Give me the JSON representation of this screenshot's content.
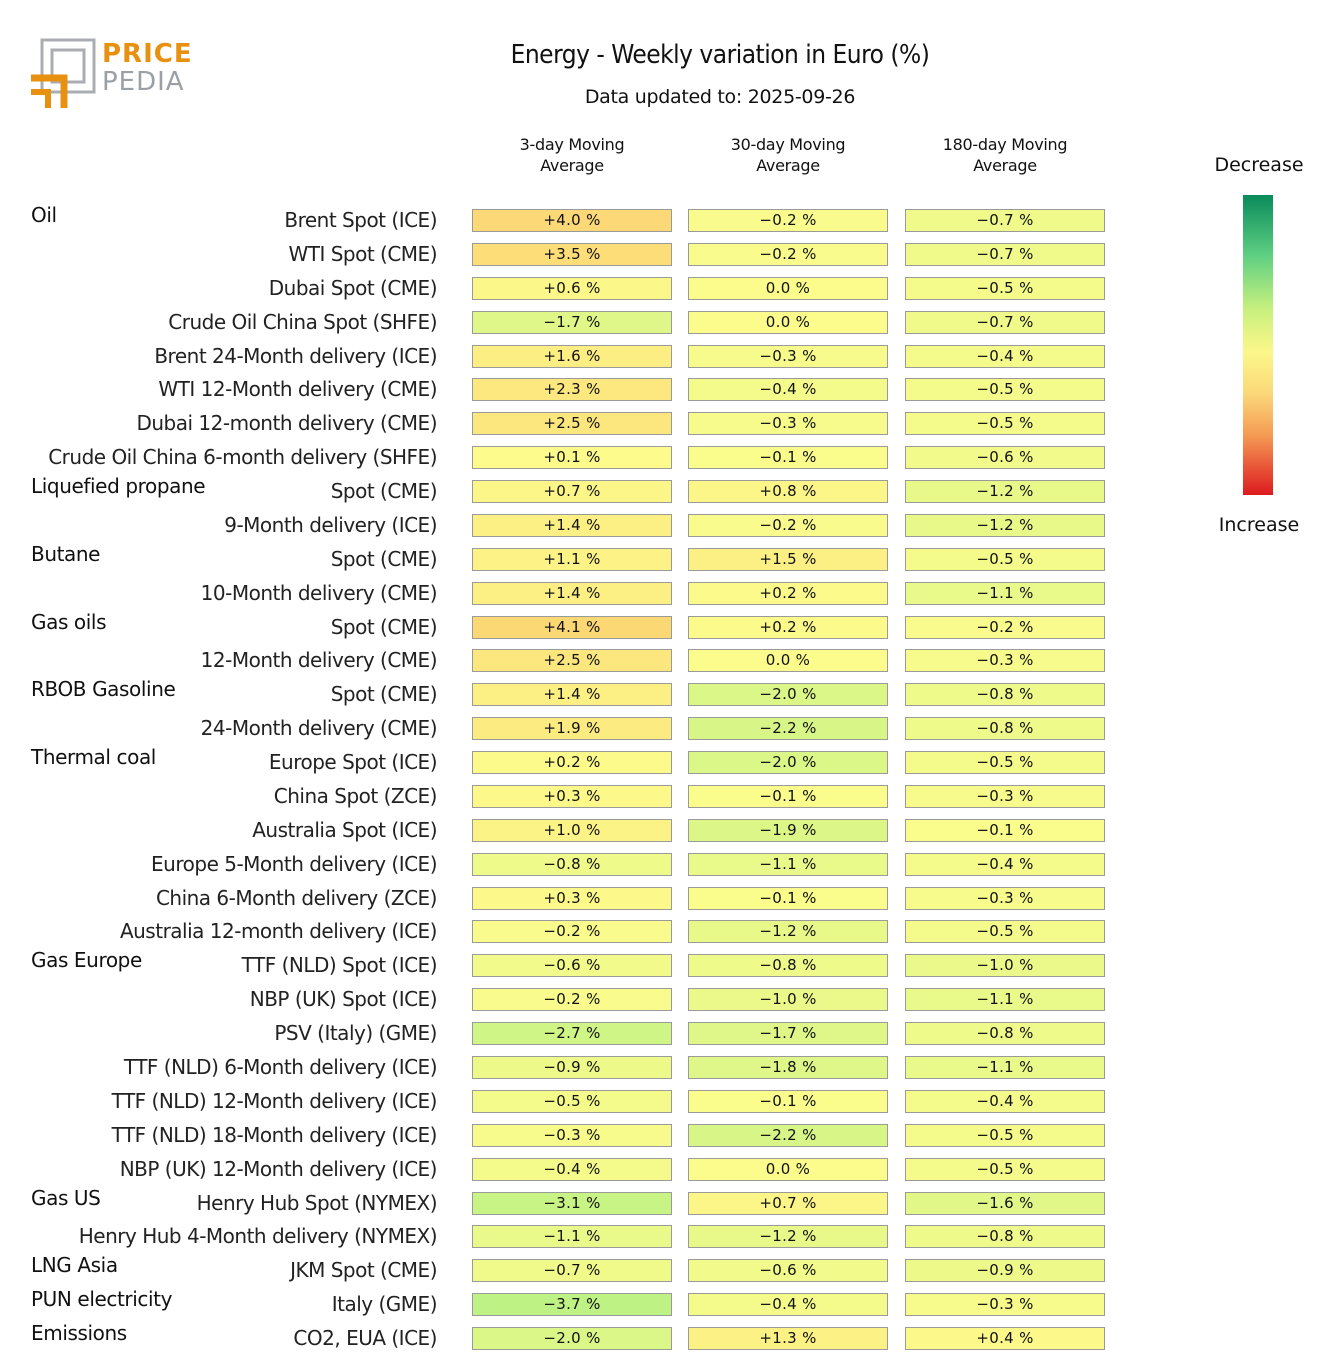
{
  "logo": {
    "word1": "PRICE",
    "word2": "PEDIA"
  },
  "title": "Energy - Weekly variation in Euro (%)",
  "subtitle": "Data updated to: 2025-09-26",
  "legend": {
    "top": "Decrease",
    "bottom": "Increase"
  },
  "chart_data": {
    "type": "heatmap",
    "title": "Energy - Weekly variation in Euro (%)",
    "columns": [
      "3-day Moving Average",
      "30-day Moving Average",
      "180-day Moving Average"
    ],
    "column_labels": [
      [
        "3-day Moving",
        "Average"
      ],
      [
        "30-day Moving",
        "Average"
      ],
      [
        "180-day Moving",
        "Average"
      ]
    ],
    "unit": "%",
    "rows": [
      {
        "group": "Oil",
        "label": "Brent Spot (ICE)",
        "values": [
          4.0,
          -0.2,
          -0.7
        ]
      },
      {
        "group": "",
        "label": "WTI Spot (CME)",
        "values": [
          3.5,
          -0.2,
          -0.7
        ]
      },
      {
        "group": "",
        "label": "Dubai Spot (CME)",
        "values": [
          0.6,
          0.0,
          -0.5
        ]
      },
      {
        "group": "",
        "label": "Crude Oil China Spot (SHFE)",
        "values": [
          -1.7,
          0.0,
          -0.7
        ]
      },
      {
        "group": "",
        "label": "Brent 24-Month delivery (ICE)",
        "values": [
          1.6,
          -0.3,
          -0.4
        ]
      },
      {
        "group": "",
        "label": "WTI 12-Month delivery (CME)",
        "values": [
          2.3,
          -0.4,
          -0.5
        ]
      },
      {
        "group": "",
        "label": "Dubai 12-month delivery (CME)",
        "values": [
          2.5,
          -0.3,
          -0.5
        ]
      },
      {
        "group": "",
        "label": "Crude Oil China 6-month delivery (SHFE)",
        "values": [
          0.1,
          -0.1,
          -0.6
        ]
      },
      {
        "group": "Liquefied propane",
        "label": "Spot (CME)",
        "values": [
          0.7,
          0.8,
          -1.2
        ]
      },
      {
        "group": "",
        "label": "9-Month delivery (ICE)",
        "values": [
          1.4,
          -0.2,
          -1.2
        ]
      },
      {
        "group": "Butane",
        "label": "Spot (CME)",
        "values": [
          1.1,
          1.5,
          -0.5
        ]
      },
      {
        "group": "",
        "label": "10-Month delivery (CME)",
        "values": [
          1.4,
          0.2,
          -1.1
        ]
      },
      {
        "group": "Gas oils",
        "label": "Spot (CME)",
        "values": [
          4.1,
          0.2,
          -0.2
        ]
      },
      {
        "group": "",
        "label": "12-Month delivery (CME)",
        "values": [
          2.5,
          0.0,
          -0.3
        ]
      },
      {
        "group": "RBOB Gasoline",
        "label": "Spot (CME)",
        "values": [
          1.4,
          -2.0,
          -0.8
        ]
      },
      {
        "group": "",
        "label": "24-Month delivery (CME)",
        "values": [
          1.9,
          -2.2,
          -0.8
        ]
      },
      {
        "group": "Thermal coal",
        "label": "Europe Spot (ICE)",
        "values": [
          0.2,
          -2.0,
          -0.5
        ]
      },
      {
        "group": "",
        "label": "China Spot (ZCE)",
        "values": [
          0.3,
          -0.1,
          -0.3
        ]
      },
      {
        "group": "",
        "label": "Australia Spot (ICE)",
        "values": [
          1.0,
          -1.9,
          -0.1
        ]
      },
      {
        "group": "",
        "label": "Europe 5-Month delivery (ICE)",
        "values": [
          -0.8,
          -1.1,
          -0.4
        ]
      },
      {
        "group": "",
        "label": "China 6-Month delivery (ZCE)",
        "values": [
          0.3,
          -0.1,
          -0.3
        ]
      },
      {
        "group": "",
        "label": "Australia 12-month delivery (ICE)",
        "values": [
          -0.2,
          -1.2,
          -0.5
        ]
      },
      {
        "group": "Gas Europe",
        "label": "TTF (NLD) Spot (ICE)",
        "values": [
          -0.6,
          -0.8,
          -1.0
        ]
      },
      {
        "group": "",
        "label": "NBP (UK) Spot (ICE)",
        "values": [
          -0.2,
          -1.0,
          -1.1
        ]
      },
      {
        "group": "",
        "label": "PSV (Italy) (GME)",
        "values": [
          -2.7,
          -1.7,
          -0.8
        ]
      },
      {
        "group": "",
        "label": "TTF (NLD) 6-Month delivery (ICE)",
        "values": [
          -0.9,
          -1.8,
          -1.1
        ]
      },
      {
        "group": "",
        "label": "TTF (NLD) 12-Month delivery (ICE)",
        "values": [
          -0.5,
          -0.1,
          -0.4
        ]
      },
      {
        "group": "",
        "label": "TTF (NLD) 18-Month delivery (ICE)",
        "values": [
          -0.3,
          -2.2,
          -0.5
        ]
      },
      {
        "group": "",
        "label": "NBP (UK) 12-Month delivery (ICE)",
        "values": [
          -0.4,
          0.0,
          -0.5
        ]
      },
      {
        "group": "Gas US",
        "label": "Henry Hub Spot (NYMEX)",
        "values": [
          -3.1,
          0.7,
          -1.6
        ]
      },
      {
        "group": "",
        "label": "Henry Hub 4-Month delivery (NYMEX)",
        "values": [
          -1.1,
          -1.2,
          -0.8
        ]
      },
      {
        "group": "LNG Asia",
        "label": "JKM Spot (CME)",
        "values": [
          -0.7,
          -0.6,
          -0.9
        ]
      },
      {
        "group": "PUN electricity",
        "label": "Italy (GME)",
        "values": [
          -3.7,
          -0.4,
          -0.3
        ]
      },
      {
        "group": "Emissions",
        "label": "CO2, EUA (ICE)",
        "values": [
          -2.0,
          1.3,
          0.4
        ]
      }
    ]
  }
}
